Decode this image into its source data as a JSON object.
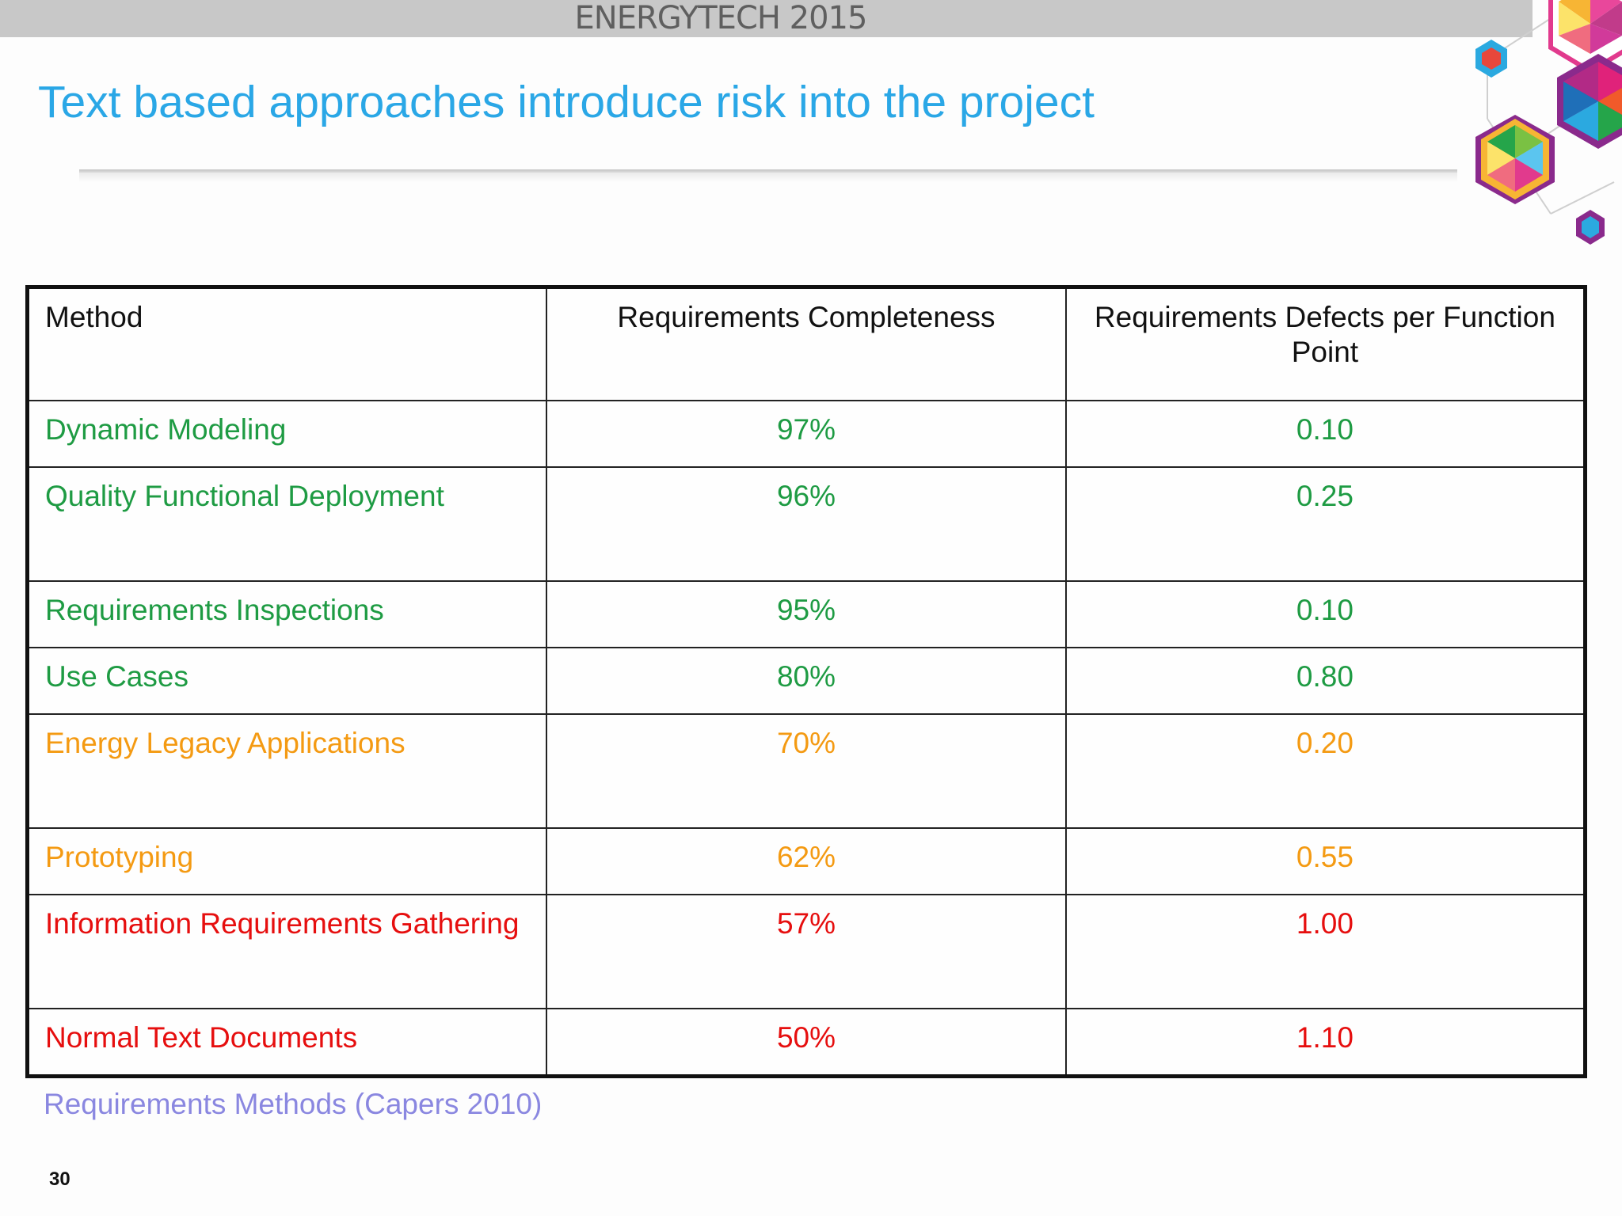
{
  "header": {
    "brand": "ENERGYTECH 2015",
    "title": "Text based approaches introduce risk into the project"
  },
  "colors": {
    "title": "#2aa7e6",
    "good": "#1e9b43",
    "medium": "#f49a12",
    "bad": "#e60e0e",
    "source": "#8a87e0"
  },
  "logo": {
    "icon": "hexagon-cluster-logo"
  },
  "table": {
    "headers": [
      "Method",
      "Requirements Completeness",
      "Requirements Defects per Function Point"
    ],
    "rows": [
      {
        "method": "Dynamic Modeling",
        "completeness": "97%",
        "defects": "0.10",
        "tone": "green"
      },
      {
        "method": "Quality Functional Deployment",
        "completeness": "96%",
        "defects": "0.25",
        "tone": "green"
      },
      {
        "method": "Requirements Inspections",
        "completeness": "95%",
        "defects": "0.10",
        "tone": "green"
      },
      {
        "method": "Use Cases",
        "completeness": "80%",
        "defects": "0.80",
        "tone": "green"
      },
      {
        "method": "Energy Legacy Applications",
        "completeness": "70%",
        "defects": "0.20",
        "tone": "orange"
      },
      {
        "method": "Prototyping",
        "completeness": "62%",
        "defects": "0.55",
        "tone": "orange"
      },
      {
        "method": "Information Requirements Gathering",
        "completeness": "57%",
        "defects": "1.00",
        "tone": "red"
      },
      {
        "method": "Normal Text Documents",
        "completeness": "50%",
        "defects": "1.10",
        "tone": "red"
      }
    ]
  },
  "footer": {
    "source": "Requirements Methods (Capers 2010)",
    "page_number": "30"
  }
}
